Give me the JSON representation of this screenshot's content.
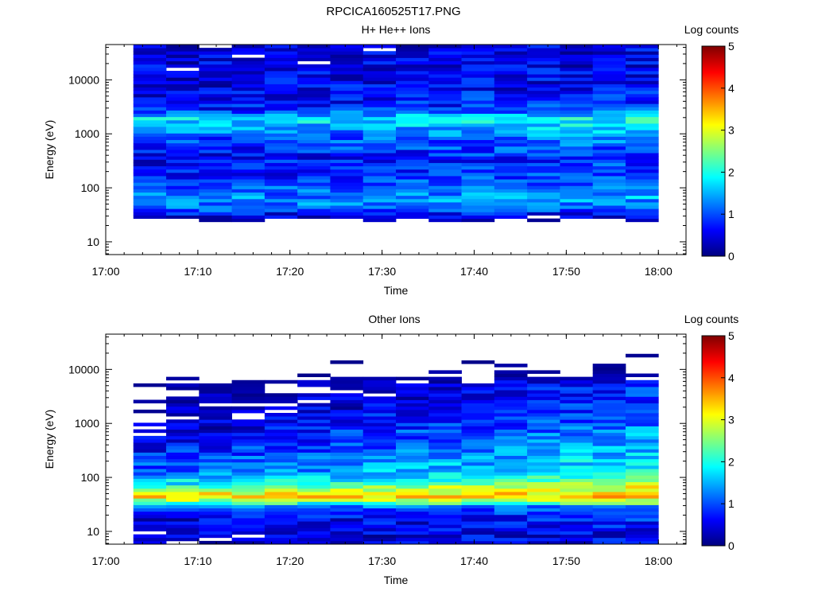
{
  "figure_title": "RPCICA160525T17.PNG",
  "colormap_stops": [
    "#00007f",
    "#0000ff",
    "#007fff",
    "#00ffff",
    "#7fff7f",
    "#ffff00",
    "#ff7f00",
    "#ff0000",
    "#7f0000"
  ],
  "chart_data": [
    {
      "type": "heatmap",
      "title": "H+ He++ Ions",
      "xlabel": "Time",
      "ylabel": "Energy (eV)",
      "colorbar_label": "Log counts",
      "colorbar_range": [
        0,
        5
      ],
      "colorbar_ticks": [
        "0",
        "1",
        "2",
        "3",
        "4",
        "5"
      ],
      "x_scale": "time",
      "x_range": [
        "17:00",
        "18:03"
      ],
      "x_ticks": [
        "17:00",
        "17:10",
        "17:20",
        "17:30",
        "17:40",
        "17:50",
        "18:00"
      ],
      "y_scale": "log",
      "y_range": [
        5.8,
        45000
      ],
      "y_ticks": [
        "10",
        "100",
        "1000",
        "10000"
      ],
      "y_tick_values": [
        10,
        100,
        1000,
        10000
      ],
      "data_time_range": [
        "17:03",
        "18:00"
      ],
      "time_bins": 16,
      "profile": [
        {
          "energy": 8,
          "log_counts": -1
        },
        {
          "energy": 12,
          "log_counts": -1
        },
        {
          "energy": 18,
          "log_counts": -1
        },
        {
          "energy": 28,
          "log_counts": 0.3
        },
        {
          "energy": 40,
          "log_counts": 1.0
        },
        {
          "energy": 55,
          "log_counts": 1.3
        },
        {
          "energy": 80,
          "log_counts": 1.1
        },
        {
          "energy": 150,
          "log_counts": 0.7
        },
        {
          "energy": 400,
          "log_counts": 0.6
        },
        {
          "energy": 900,
          "log_counts": 1.0
        },
        {
          "energy": 1900,
          "log_counts": 1.7
        },
        {
          "energy": 3000,
          "log_counts": 0.6
        },
        {
          "energy": 10000,
          "log_counts": 0.5
        },
        {
          "energy": 40000,
          "log_counts": 0.4
        }
      ],
      "late_enhancement": 0.3
    },
    {
      "type": "heatmap",
      "title": "Other Ions",
      "xlabel": "Time",
      "ylabel": "Energy (eV)",
      "colorbar_label": "Log counts",
      "colorbar_range": [
        0,
        5
      ],
      "colorbar_ticks": [
        "0",
        "1",
        "2",
        "3",
        "4",
        "5"
      ],
      "x_scale": "time",
      "x_range": [
        "17:00",
        "18:03"
      ],
      "x_ticks": [
        "17:00",
        "17:10",
        "17:20",
        "17:30",
        "17:40",
        "17:50",
        "18:00"
      ],
      "y_scale": "log",
      "y_range": [
        5.8,
        45000
      ],
      "y_ticks": [
        "10",
        "100",
        "1000",
        "10000"
      ],
      "y_tick_values": [
        10,
        100,
        1000,
        10000
      ],
      "data_time_range": [
        "17:03",
        "18:00"
      ],
      "time_bins": 16,
      "profile": [
        {
          "energy": 8,
          "log_counts": 0.3
        },
        {
          "energy": 15,
          "log_counts": 0.4
        },
        {
          "energy": 28,
          "log_counts": 0.9
        },
        {
          "energy": 35,
          "log_counts": 2.3
        },
        {
          "energy": 45,
          "log_counts": 3.3
        },
        {
          "energy": 55,
          "log_counts": 2.8
        },
        {
          "energy": 70,
          "log_counts": 2.0
        },
        {
          "energy": 120,
          "log_counts": 1.1
        },
        {
          "energy": 400,
          "log_counts": 0.6
        },
        {
          "energy": 2000,
          "log_counts": 0.1
        },
        {
          "energy": 8000,
          "log_counts": -0.3
        },
        {
          "energy": 40000,
          "log_counts": -0.8
        }
      ],
      "late_enhancement": 0.9
    }
  ]
}
